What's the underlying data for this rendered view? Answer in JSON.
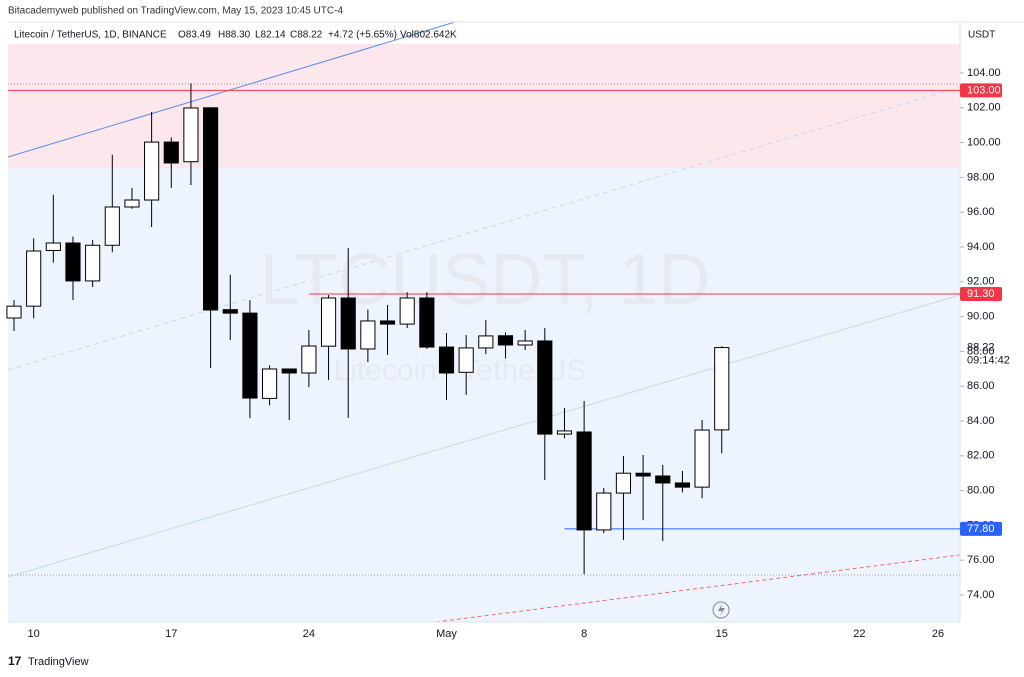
{
  "chart_data": {
    "type": "candlestick",
    "header": "Bitacademyweb published on TradingView.com, May 15, 2023 10:45 UTC-4",
    "legend": {
      "symbol": "Litecoin / TetherUS, 1D, BINANCE",
      "open": "O83.49",
      "high": "H88.30",
      "low": "L82.14",
      "close": "C88.22",
      "change": "+4.72 (+5.65%)",
      "volume": "Vol802.642K"
    },
    "watermark": {
      "symbol": "LTCUSDT, 1D",
      "name": "Litecoin / TetherUS"
    },
    "currency": "USDT",
    "footer": "TradingView",
    "up_color": "#ffffff",
    "down_color": "#000000",
    "wick_color": "#000000",
    "categories": [
      null,
      "10",
      null,
      null,
      null,
      null,
      null,
      null,
      "17",
      null,
      null,
      null,
      null,
      null,
      null,
      "24",
      null,
      null,
      null,
      null,
      null,
      null,
      "May",
      null,
      null,
      null,
      null,
      null,
      null,
      "8",
      null,
      null,
      null,
      null,
      null,
      null,
      "15",
      null,
      null,
      null,
      null,
      null,
      null,
      "22",
      null,
      null,
      null,
      "26",
      null
    ],
    "open": [
      89.92,
      90.6,
      93.8,
      94.23,
      92.05,
      94.1,
      96.3,
      96.7,
      100.03,
      98.9,
      102.0,
      90.4,
      90.2,
      85.3,
      86.99,
      86.76,
      88.3,
      91.07,
      88.14,
      89.75,
      89.57,
      91.07,
      88.25,
      86.8,
      88.2,
      88.9,
      88.37,
      88.6,
      83.25,
      83.37,
      77.74,
      79.86,
      81.0,
      80.84,
      80.44,
      80.2,
      83.49,
      null,
      null,
      null,
      null,
      null,
      null,
      null,
      null,
      null,
      null,
      null,
      null
    ],
    "high": [
      90.95,
      94.5,
      97.0,
      94.6,
      94.4,
      99.3,
      97.4,
      101.76,
      100.3,
      103.4,
      102.0,
      92.4,
      90.95,
      87.2,
      87.0,
      89.23,
      91.24,
      93.94,
      90.4,
      90.67,
      91.4,
      91.4,
      89.06,
      88.94,
      89.8,
      89.1,
      89.23,
      89.34,
      84.75,
      85.15,
      80.15,
      81.99,
      82.05,
      81.47,
      81.13,
      84.06,
      88.3,
      null,
      null,
      null,
      null,
      null,
      null,
      null,
      null,
      null,
      null,
      null,
      null
    ],
    "low": [
      89.17,
      89.9,
      93.1,
      90.95,
      91.7,
      93.7,
      96.2,
      95.15,
      97.4,
      97.56,
      87.05,
      88.65,
      84.17,
      84.9,
      84.06,
      85.95,
      86.36,
      84.17,
      87.39,
      87.8,
      89.34,
      88.14,
      85.2,
      85.5,
      87.85,
      87.6,
      88.08,
      80.6,
      83.0,
      75.2,
      77.56,
      77.16,
      78.3,
      77.1,
      79.9,
      79.57,
      82.14,
      null,
      null,
      null,
      null,
      null,
      null,
      null,
      null,
      null,
      null,
      null,
      null
    ],
    "close": [
      90.6,
      93.77,
      94.23,
      92.05,
      94.1,
      96.3,
      96.7,
      100.03,
      98.83,
      101.99,
      90.38,
      90.2,
      85.32,
      86.99,
      86.76,
      88.31,
      91.07,
      88.14,
      89.75,
      89.57,
      91.07,
      88.25,
      86.76,
      88.2,
      88.89,
      88.37,
      88.6,
      83.25,
      83.43,
      77.74,
      79.86,
      81.0,
      80.84,
      80.44,
      80.2,
      83.48,
      88.22,
      null,
      null,
      null,
      null,
      null,
      null,
      null,
      null,
      null,
      null,
      null,
      null
    ],
    "ylim": [
      72.45,
      106.93
    ],
    "yticks": [
      {
        "value": 74,
        "label": "74.00"
      },
      {
        "value": 76,
        "label": "76.00"
      },
      {
        "value": 78,
        "label": "78.00"
      },
      {
        "value": 80,
        "label": "80.00"
      },
      {
        "value": 82,
        "label": "82.00"
      },
      {
        "value": 84,
        "label": "84.00"
      },
      {
        "value": 86,
        "label": "86.00"
      },
      {
        "value": 88,
        "label": "88.00"
      },
      {
        "value": 90,
        "label": "90.00"
      },
      {
        "value": 92,
        "label": "92.00"
      },
      {
        "value": 94,
        "label": "94.00"
      },
      {
        "value": 96,
        "label": "96.00"
      },
      {
        "value": 98,
        "label": "98.00"
      },
      {
        "value": 100,
        "label": "100.00"
      },
      {
        "value": 102,
        "label": "102.00"
      },
      {
        "value": 104,
        "label": "104.00"
      }
    ],
    "levels": [
      {
        "value": 103,
        "label": "103.00",
        "color": "#f23645"
      },
      {
        "value": 91.3,
        "label": "91.30",
        "color": "#f23645"
      },
      {
        "value": 77.8,
        "label": "77.80",
        "color": "#2962ff"
      }
    ],
    "last_price": 88.22,
    "countdown": "09:14:42",
    "grid": false
  }
}
